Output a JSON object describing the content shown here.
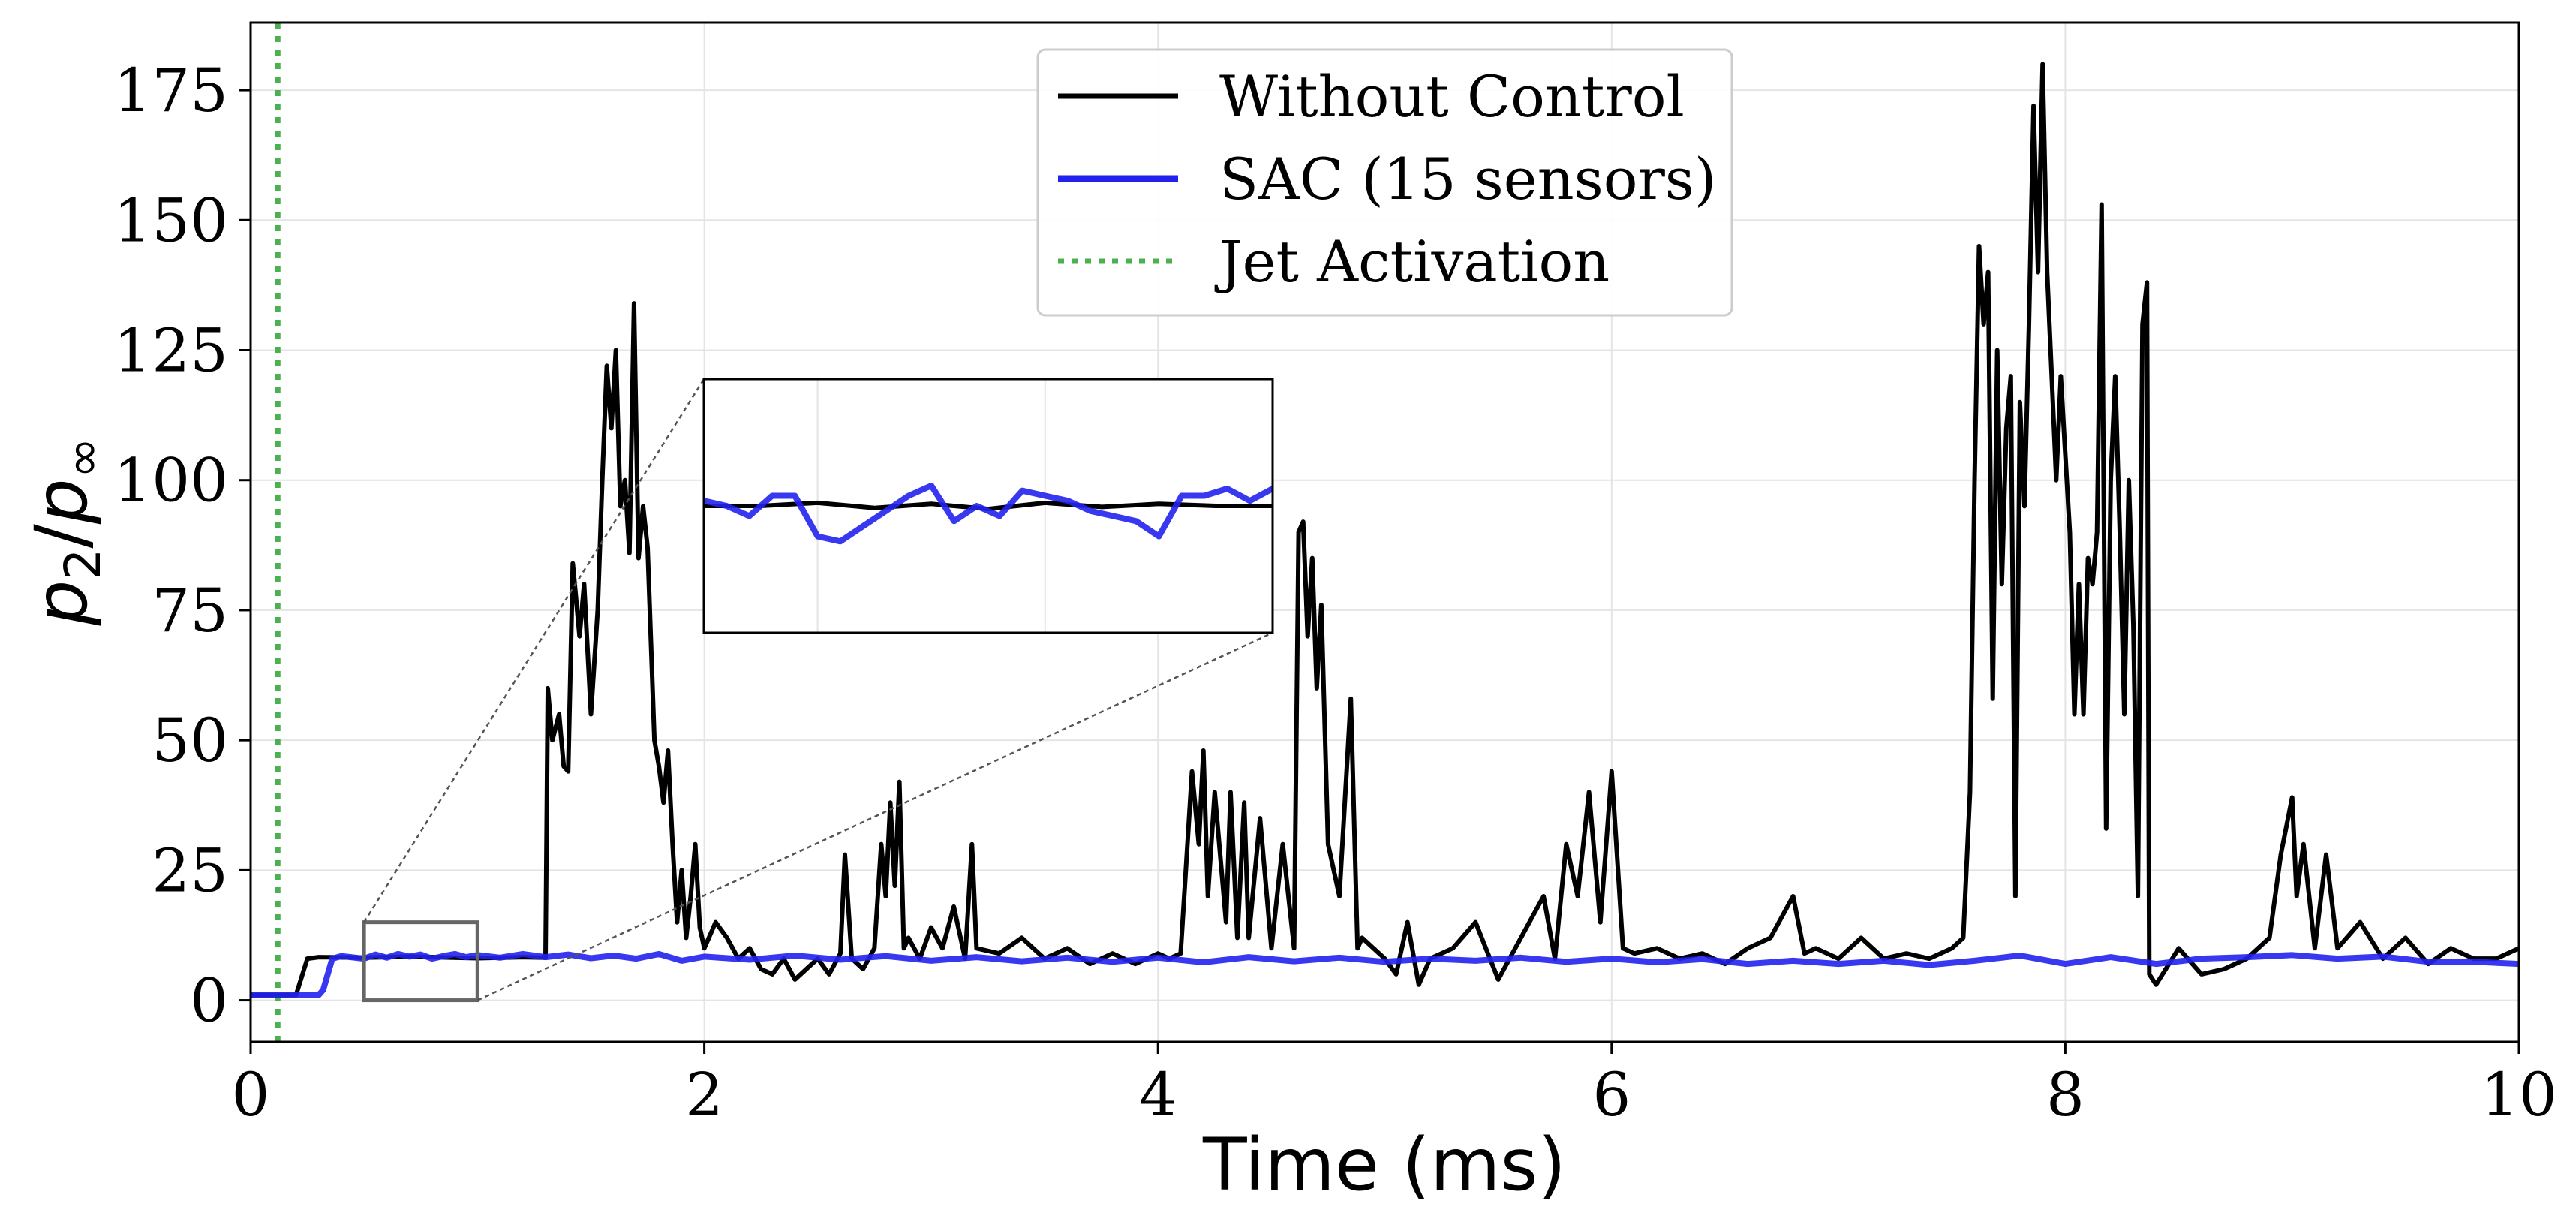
{
  "chart_data": {
    "type": "line",
    "xlabel": "Time (ms)",
    "ylabel_main": "p",
    "ylabel_sub2": "2",
    "ylabel_slash": "/",
    "ylabel_subinf": "∞",
    "xlim": [
      0,
      10
    ],
    "ylim": [
      -8,
      188
    ],
    "xticks": [
      0,
      2,
      4,
      6,
      8,
      10
    ],
    "xtick_labels": [
      "0",
      "2",
      "4",
      "6",
      "8",
      "10"
    ],
    "yticks": [
      0,
      25,
      50,
      75,
      100,
      125,
      150,
      175
    ],
    "ytick_labels": [
      "0",
      "25",
      "50",
      "75",
      "100",
      "125",
      "150",
      "175"
    ],
    "grid": true,
    "legend_position": "top-center",
    "jet_activation_time": 0.12,
    "series": [
      {
        "name": "Without Control",
        "color": "#000000",
        "points": [
          [
            0,
            1
          ],
          [
            0.2,
            1
          ],
          [
            0.25,
            8
          ],
          [
            0.3,
            8.3
          ],
          [
            0.5,
            8.2
          ],
          [
            0.7,
            8.4
          ],
          [
            1.0,
            8.1
          ],
          [
            1.2,
            8.3
          ],
          [
            1.3,
            8.2
          ],
          [
            1.31,
            60
          ],
          [
            1.33,
            50
          ],
          [
            1.36,
            55
          ],
          [
            1.38,
            45
          ],
          [
            1.4,
            44
          ],
          [
            1.42,
            84
          ],
          [
            1.45,
            70
          ],
          [
            1.47,
            80
          ],
          [
            1.5,
            55
          ],
          [
            1.53,
            75
          ],
          [
            1.55,
            100
          ],
          [
            1.57,
            122
          ],
          [
            1.59,
            110
          ],
          [
            1.61,
            125
          ],
          [
            1.63,
            95
          ],
          [
            1.65,
            100
          ],
          [
            1.67,
            86
          ],
          [
            1.69,
            134
          ],
          [
            1.71,
            85
          ],
          [
            1.73,
            95
          ],
          [
            1.75,
            87
          ],
          [
            1.78,
            50
          ],
          [
            1.8,
            45
          ],
          [
            1.82,
            38
          ],
          [
            1.84,
            48
          ],
          [
            1.86,
            30
          ],
          [
            1.88,
            15
          ],
          [
            1.9,
            25
          ],
          [
            1.92,
            12
          ],
          [
            1.94,
            20
          ],
          [
            1.96,
            30
          ],
          [
            1.98,
            14
          ],
          [
            2.0,
            10
          ],
          [
            2.05,
            15
          ],
          [
            2.1,
            12
          ],
          [
            2.15,
            8
          ],
          [
            2.2,
            10
          ],
          [
            2.25,
            6
          ],
          [
            2.3,
            5
          ],
          [
            2.35,
            8
          ],
          [
            2.4,
            4
          ],
          [
            2.45,
            6
          ],
          [
            2.5,
            8
          ],
          [
            2.55,
            5
          ],
          [
            2.6,
            9
          ],
          [
            2.62,
            28
          ],
          [
            2.65,
            8
          ],
          [
            2.7,
            6
          ],
          [
            2.75,
            10
          ],
          [
            2.78,
            30
          ],
          [
            2.8,
            20
          ],
          [
            2.82,
            38
          ],
          [
            2.84,
            22
          ],
          [
            2.86,
            42
          ],
          [
            2.88,
            10
          ],
          [
            2.9,
            12
          ],
          [
            2.95,
            8
          ],
          [
            3.0,
            14
          ],
          [
            3.05,
            10
          ],
          [
            3.1,
            18
          ],
          [
            3.15,
            8
          ],
          [
            3.18,
            30
          ],
          [
            3.2,
            10
          ],
          [
            3.3,
            9
          ],
          [
            3.4,
            12
          ],
          [
            3.5,
            8
          ],
          [
            3.6,
            10
          ],
          [
            3.7,
            7
          ],
          [
            3.8,
            9
          ],
          [
            3.9,
            7
          ],
          [
            4.0,
            9
          ],
          [
            4.05,
            8
          ],
          [
            4.1,
            9
          ],
          [
            4.15,
            44
          ],
          [
            4.18,
            30
          ],
          [
            4.2,
            48
          ],
          [
            4.22,
            20
          ],
          [
            4.25,
            40
          ],
          [
            4.3,
            15
          ],
          [
            4.32,
            40
          ],
          [
            4.35,
            12
          ],
          [
            4.38,
            38
          ],
          [
            4.4,
            12
          ],
          [
            4.45,
            35
          ],
          [
            4.5,
            10
          ],
          [
            4.55,
            30
          ],
          [
            4.6,
            10
          ],
          [
            4.62,
            90
          ],
          [
            4.64,
            92
          ],
          [
            4.66,
            70
          ],
          [
            4.68,
            85
          ],
          [
            4.7,
            60
          ],
          [
            4.72,
            76
          ],
          [
            4.75,
            30
          ],
          [
            4.8,
            20
          ],
          [
            4.85,
            58
          ],
          [
            4.88,
            10
          ],
          [
            4.9,
            12
          ],
          [
            5.0,
            8
          ],
          [
            5.05,
            5
          ],
          [
            5.1,
            15
          ],
          [
            5.15,
            3
          ],
          [
            5.2,
            8
          ],
          [
            5.3,
            10
          ],
          [
            5.4,
            15
          ],
          [
            5.5,
            4
          ],
          [
            5.6,
            12
          ],
          [
            5.7,
            20
          ],
          [
            5.75,
            8
          ],
          [
            5.8,
            30
          ],
          [
            5.85,
            20
          ],
          [
            5.9,
            40
          ],
          [
            5.95,
            15
          ],
          [
            6.0,
            44
          ],
          [
            6.05,
            10
          ],
          [
            6.1,
            9
          ],
          [
            6.2,
            10
          ],
          [
            6.3,
            8
          ],
          [
            6.4,
            9
          ],
          [
            6.5,
            7
          ],
          [
            6.6,
            10
          ],
          [
            6.7,
            12
          ],
          [
            6.8,
            20
          ],
          [
            6.85,
            9
          ],
          [
            6.9,
            10
          ],
          [
            7.0,
            8
          ],
          [
            7.1,
            12
          ],
          [
            7.2,
            8
          ],
          [
            7.3,
            9
          ],
          [
            7.4,
            8
          ],
          [
            7.5,
            10
          ],
          [
            7.55,
            12
          ],
          [
            7.58,
            40
          ],
          [
            7.6,
            100
          ],
          [
            7.62,
            145
          ],
          [
            7.64,
            130
          ],
          [
            7.66,
            140
          ],
          [
            7.68,
            58
          ],
          [
            7.7,
            125
          ],
          [
            7.72,
            80
          ],
          [
            7.74,
            110
          ],
          [
            7.76,
            120
          ],
          [
            7.78,
            20
          ],
          [
            7.8,
            115
          ],
          [
            7.82,
            95
          ],
          [
            7.84,
            130
          ],
          [
            7.86,
            172
          ],
          [
            7.88,
            140
          ],
          [
            7.9,
            180
          ],
          [
            7.92,
            140
          ],
          [
            7.94,
            120
          ],
          [
            7.96,
            100
          ],
          [
            7.98,
            120
          ],
          [
            8.0,
            105
          ],
          [
            8.02,
            90
          ],
          [
            8.04,
            55
          ],
          [
            8.06,
            80
          ],
          [
            8.08,
            55
          ],
          [
            8.1,
            85
          ],
          [
            8.12,
            80
          ],
          [
            8.14,
            90
          ],
          [
            8.16,
            153
          ],
          [
            8.18,
            33
          ],
          [
            8.2,
            100
          ],
          [
            8.22,
            120
          ],
          [
            8.24,
            90
          ],
          [
            8.26,
            55
          ],
          [
            8.28,
            100
          ],
          [
            8.3,
            72
          ],
          [
            8.32,
            20
          ],
          [
            8.34,
            130
          ],
          [
            8.36,
            138
          ],
          [
            8.37,
            5
          ],
          [
            8.4,
            3
          ],
          [
            8.5,
            10
          ],
          [
            8.6,
            5
          ],
          [
            8.7,
            6
          ],
          [
            8.8,
            8
          ],
          [
            8.9,
            12
          ],
          [
            8.95,
            28
          ],
          [
            9.0,
            39
          ],
          [
            9.02,
            20
          ],
          [
            9.05,
            30
          ],
          [
            9.1,
            10
          ],
          [
            9.15,
            28
          ],
          [
            9.2,
            10
          ],
          [
            9.3,
            15
          ],
          [
            9.4,
            8
          ],
          [
            9.5,
            12
          ],
          [
            9.6,
            7
          ],
          [
            9.7,
            10
          ],
          [
            9.8,
            8
          ],
          [
            9.9,
            8
          ],
          [
            10.0,
            10
          ]
        ]
      },
      {
        "name": "SAC (15 sensors)",
        "color": "#2222ee",
        "points": [
          [
            0,
            1
          ],
          [
            0.3,
            1
          ],
          [
            0.32,
            2
          ],
          [
            0.36,
            8
          ],
          [
            0.4,
            8.5
          ],
          [
            0.5,
            8.0
          ],
          [
            0.55,
            8.8
          ],
          [
            0.6,
            8.2
          ],
          [
            0.65,
            8.9
          ],
          [
            0.7,
            8.4
          ],
          [
            0.75,
            8.8
          ],
          [
            0.8,
            8.0
          ],
          [
            0.85,
            8.5
          ],
          [
            0.9,
            8.9
          ],
          [
            0.95,
            8.3
          ],
          [
            1.0,
            8.7
          ],
          [
            1.1,
            8.2
          ],
          [
            1.2,
            8.9
          ],
          [
            1.3,
            8.3
          ],
          [
            1.4,
            8.8
          ],
          [
            1.5,
            8.1
          ],
          [
            1.6,
            8.6
          ],
          [
            1.7,
            8.0
          ],
          [
            1.8,
            8.9
          ],
          [
            1.9,
            7.6
          ],
          [
            2.0,
            8.4
          ],
          [
            2.2,
            7.8
          ],
          [
            2.4,
            8.6
          ],
          [
            2.6,
            7.8
          ],
          [
            2.8,
            8.5
          ],
          [
            3.0,
            7.6
          ],
          [
            3.2,
            8.3
          ],
          [
            3.4,
            7.5
          ],
          [
            3.6,
            8.2
          ],
          [
            3.8,
            7.4
          ],
          [
            4.0,
            8.2
          ],
          [
            4.2,
            7.3
          ],
          [
            4.4,
            8.3
          ],
          [
            4.6,
            7.5
          ],
          [
            4.8,
            8.2
          ],
          [
            5.0,
            7.4
          ],
          [
            5.2,
            8.0
          ],
          [
            5.4,
            7.6
          ],
          [
            5.6,
            8.2
          ],
          [
            5.8,
            7.4
          ],
          [
            6.0,
            8.0
          ],
          [
            6.2,
            7.3
          ],
          [
            6.4,
            7.9
          ],
          [
            6.6,
            7.0
          ],
          [
            6.8,
            7.6
          ],
          [
            7.0,
            7.0
          ],
          [
            7.2,
            7.6
          ],
          [
            7.4,
            6.8
          ],
          [
            7.6,
            7.6
          ],
          [
            7.8,
            8.6
          ],
          [
            8.0,
            7.0
          ],
          [
            8.2,
            8.3
          ],
          [
            8.4,
            7.0
          ],
          [
            8.6,
            8.0
          ],
          [
            8.8,
            8.3
          ],
          [
            9.0,
            8.7
          ],
          [
            9.2,
            8.0
          ],
          [
            9.4,
            8.4
          ],
          [
            9.6,
            7.4
          ],
          [
            9.8,
            7.4
          ],
          [
            10.0,
            7.0
          ]
        ]
      }
    ],
    "inset": {
      "zoom_xlim": [
        0.5,
        1.0
      ],
      "zoom_ylim": [
        0,
        15
      ],
      "inset_ylim": [
        7,
        9.5
      ],
      "black_points": [
        [
          0.5,
          8.25
        ],
        [
          0.55,
          8.25
        ],
        [
          0.6,
          8.28
        ],
        [
          0.65,
          8.23
        ],
        [
          0.7,
          8.27
        ],
        [
          0.75,
          8.22
        ],
        [
          0.8,
          8.28
        ],
        [
          0.85,
          8.24
        ],
        [
          0.9,
          8.27
        ],
        [
          0.95,
          8.25
        ],
        [
          1.0,
          8.25
        ]
      ],
      "blue_points": [
        [
          0.5,
          8.3
        ],
        [
          0.52,
          8.25
        ],
        [
          0.54,
          8.15
        ],
        [
          0.56,
          8.35
        ],
        [
          0.58,
          8.35
        ],
        [
          0.6,
          7.95
        ],
        [
          0.62,
          7.9
        ],
        [
          0.64,
          8.05
        ],
        [
          0.66,
          8.2
        ],
        [
          0.68,
          8.35
        ],
        [
          0.7,
          8.45
        ],
        [
          0.72,
          8.1
        ],
        [
          0.74,
          8.25
        ],
        [
          0.76,
          8.15
        ],
        [
          0.78,
          8.4
        ],
        [
          0.8,
          8.35
        ],
        [
          0.82,
          8.3
        ],
        [
          0.84,
          8.2
        ],
        [
          0.86,
          8.15
        ],
        [
          0.88,
          8.1
        ],
        [
          0.9,
          7.95
        ],
        [
          0.92,
          8.35
        ],
        [
          0.94,
          8.35
        ],
        [
          0.96,
          8.42
        ],
        [
          0.98,
          8.3
        ],
        [
          1.0,
          8.42
        ]
      ]
    }
  }
}
